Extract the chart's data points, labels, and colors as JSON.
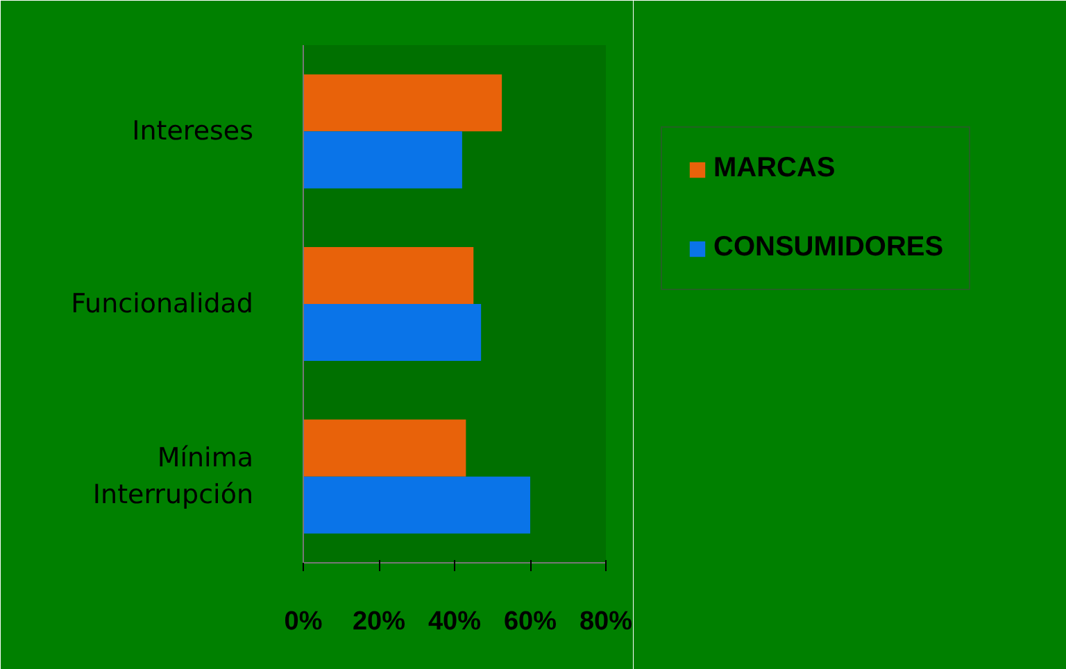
{
  "chart_data": {
    "type": "bar",
    "orientation": "horizontal",
    "categories": [
      "Intereses",
      "Funcionalidad",
      "Mínima Interrupción"
    ],
    "series": [
      {
        "name": "MARCAS",
        "color": "#e8620a",
        "values": [
          52.5,
          45,
          43
        ]
      },
      {
        "name": "CONSUMIDORES",
        "color": "#0a74e8",
        "values": [
          42,
          47,
          60
        ]
      }
    ],
    "xlim": [
      0,
      80
    ],
    "xticks": [
      {
        "value": 0,
        "label": "0%"
      },
      {
        "value": 20,
        "label": "20%"
      },
      {
        "value": 40,
        "label": "40%"
      },
      {
        "value": 60,
        "label": "60%"
      },
      {
        "value": 80,
        "label": "80%"
      }
    ],
    "grid": false,
    "legend": "top right"
  }
}
